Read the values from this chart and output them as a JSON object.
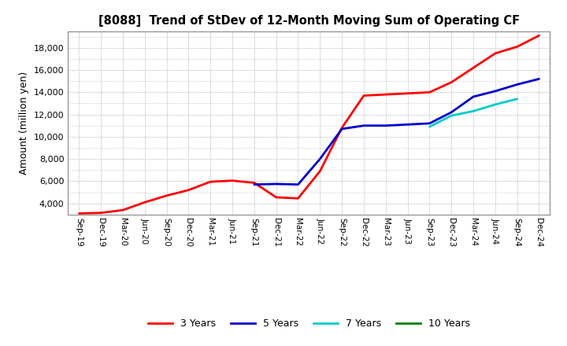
{
  "title": "[8088]  Trend of StDev of 12-Month Moving Sum of Operating CF",
  "ylabel": "Amount (million yen)",
  "background_color": "#ffffff",
  "grid_color": "#999999",
  "ylim": [
    3000,
    19500
  ],
  "yticks": [
    4000,
    6000,
    8000,
    10000,
    12000,
    14000,
    16000,
    18000
  ],
  "xtick_labels": [
    "Sep-19",
    "Dec-19",
    "Mar-20",
    "Jun-20",
    "Sep-20",
    "Dec-20",
    "Mar-21",
    "Jun-21",
    "Sep-21",
    "Dec-21",
    "Mar-22",
    "Jun-22",
    "Sep-22",
    "Dec-22",
    "Mar-23",
    "Jun-23",
    "Sep-23",
    "Dec-23",
    "Mar-24",
    "Jun-24",
    "Sep-24",
    "Dec-24"
  ],
  "series": {
    "3 Years": {
      "color": "#ff0000",
      "linewidth": 2.0,
      "data": [
        3100,
        3150,
        3400,
        4100,
        4700,
        5200,
        5950,
        6050,
        5850,
        4550,
        4450,
        6900,
        10800,
        13700,
        13800,
        13900,
        14000,
        14900,
        16200,
        17500,
        18100,
        19100
      ]
    },
    "5 Years": {
      "color": "#0000cc",
      "linewidth": 2.0,
      "data": [
        null,
        null,
        null,
        null,
        null,
        null,
        null,
        null,
        5700,
        5750,
        5700,
        8000,
        10700,
        11000,
        11000,
        11100,
        11200,
        12200,
        13600,
        14100,
        14700,
        15200
      ]
    },
    "7 Years": {
      "color": "#00cccc",
      "linewidth": 2.0,
      "data": [
        null,
        null,
        null,
        null,
        null,
        null,
        null,
        null,
        null,
        null,
        null,
        null,
        null,
        null,
        null,
        null,
        10900,
        11900,
        12300,
        12900,
        13400,
        null
      ]
    },
    "10 Years": {
      "color": "#008000",
      "linewidth": 2.0,
      "data": [
        null,
        null,
        null,
        null,
        null,
        null,
        null,
        null,
        null,
        null,
        null,
        null,
        null,
        null,
        null,
        null,
        null,
        null,
        null,
        null,
        null,
        null
      ]
    }
  },
  "legend": {
    "entries": [
      "3 Years",
      "5 Years",
      "7 Years",
      "10 Years"
    ],
    "colors": [
      "#ff0000",
      "#0000cc",
      "#00cccc",
      "#008000"
    ]
  }
}
